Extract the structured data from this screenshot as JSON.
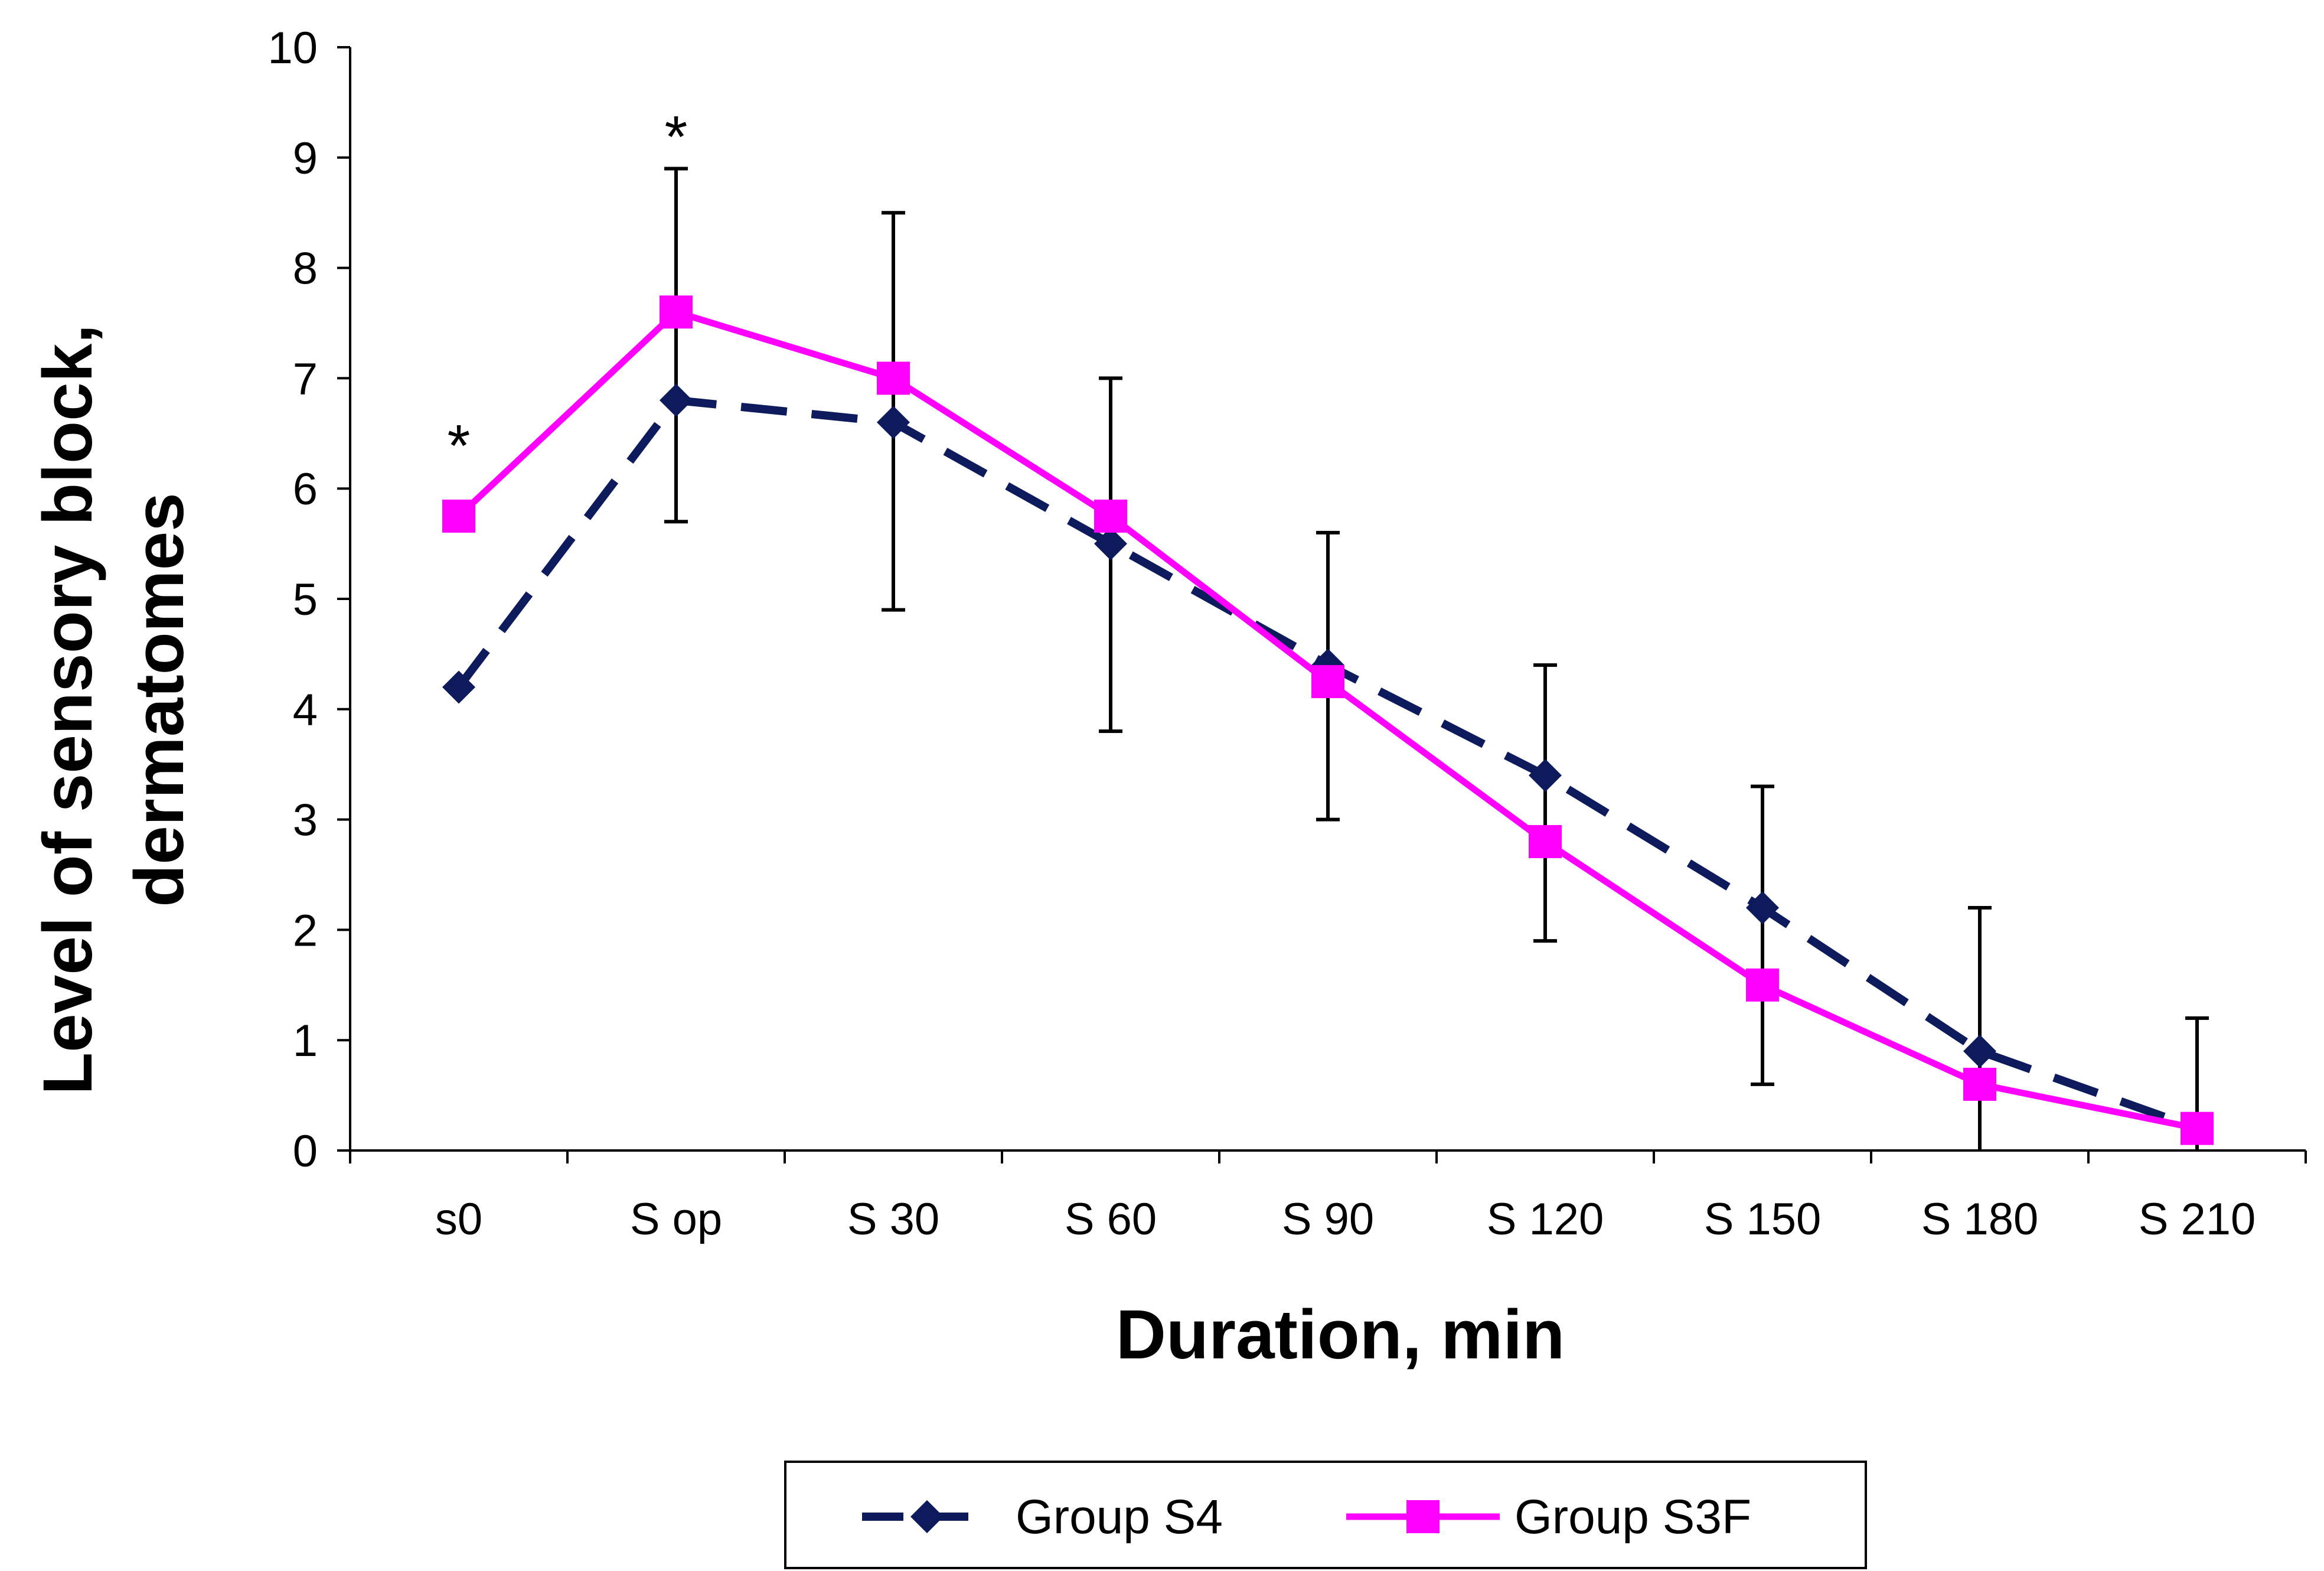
{
  "chart_data": {
    "type": "line",
    "xlabel": "Duration, min",
    "ylabel": "Level of sensory block, dermatomes",
    "ylabel_lines": [
      "Level of sensory block,",
      "dermatomes"
    ],
    "categories": [
      "s0",
      "S op",
      "S 30",
      "S 60",
      "S 90",
      "S 120",
      "S 150",
      "S 180",
      "S 210"
    ],
    "yticks": [
      "0",
      "1",
      "2",
      "3",
      "4",
      "5",
      "6",
      "7",
      "8",
      "9",
      "10"
    ],
    "ylim": [
      0,
      10
    ],
    "grid": false,
    "legend_position": "bottom",
    "series": [
      {
        "name": "Group S4",
        "color": "#0d1a5c",
        "line_style": "dashed",
        "marker": "diamond",
        "values": [
          4.2,
          6.8,
          6.6,
          5.5,
          4.4,
          3.4,
          2.2,
          0.9,
          0.2
        ]
      },
      {
        "name": "Group S3F",
        "color": "#ff00ff",
        "line_style": "solid",
        "marker": "square",
        "values": [
          5.75,
          7.6,
          7.0,
          5.75,
          4.25,
          2.8,
          1.5,
          0.6,
          0.2
        ]
      }
    ],
    "error_bars": {
      "upper": [
        null,
        8.9,
        8.5,
        7.0,
        5.6,
        4.4,
        3.3,
        2.2,
        1.2
      ],
      "lower": [
        null,
        5.7,
        4.9,
        3.8,
        3.0,
        1.9,
        0.6,
        0.0,
        0.0
      ]
    },
    "annotations": [
      {
        "text": "*",
        "category": "s0",
        "y": 6.5
      },
      {
        "text": "*",
        "category": "S op",
        "y": 9.3
      }
    ]
  }
}
